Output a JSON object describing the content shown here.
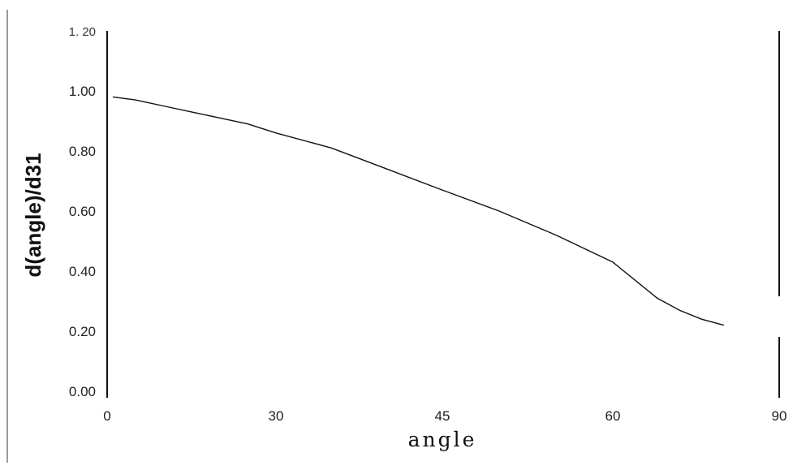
{
  "chart_data": {
    "type": "line",
    "title": "",
    "xlabel": "angle",
    "ylabel": "d(angle)/d31",
    "xlim": [
      0,
      90
    ],
    "ylim": [
      0,
      1.2
    ],
    "x_ticks": [
      "0",
      "30",
      "45",
      "60",
      "90"
    ],
    "y_ticks": [
      "0.00",
      "0.20",
      "0.40",
      "0.60",
      "0.80",
      "1.00",
      "1. 20"
    ],
    "grid": false,
    "legend": "none",
    "line_color": "#111111",
    "series": [
      {
        "x": [
          1,
          5,
          10,
          15,
          20,
          25,
          30,
          35,
          40,
          45,
          50,
          55,
          60,
          64,
          68,
          72,
          76,
          80
        ],
        "values": [
          0.98,
          0.97,
          0.95,
          0.93,
          0.91,
          0.89,
          0.86,
          0.81,
          0.74,
          0.67,
          0.6,
          0.52,
          0.43,
          0.37,
          0.31,
          0.27,
          0.24,
          0.22
        ]
      }
    ]
  }
}
